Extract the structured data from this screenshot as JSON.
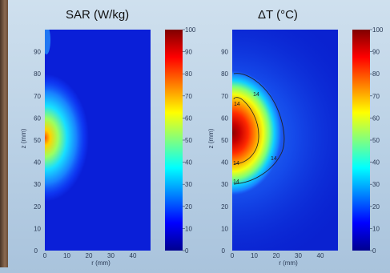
{
  "chart_data": [
    {
      "type": "heatmap",
      "title": "SAR (W/kg)",
      "xlabel": "r (mm)",
      "ylabel": "z (mm)",
      "xlim": [
        0,
        48
      ],
      "ylim": [
        0,
        100
      ],
      "x_ticks": [
        "0",
        "10",
        "20",
        "30",
        "40"
      ],
      "y_ticks": [
        "10",
        "20",
        "30",
        "40",
        "50",
        "60",
        "70",
        "80",
        "90"
      ],
      "colorbar": {
        "range": [
          0,
          100
        ],
        "ticks": [
          "0",
          "10",
          "20",
          "30",
          "40",
          "50",
          "60",
          "70",
          "80",
          "90",
          "100"
        ]
      },
      "hotspot": {
        "r": 0,
        "z": 52,
        "max": 80
      }
    },
    {
      "type": "heatmap",
      "title": "ΔT (°C)",
      "xlabel": "r (mm)",
      "ylabel": "z (mm)",
      "xlim": [
        0,
        48
      ],
      "ylim": [
        0,
        100
      ],
      "x_ticks": [
        "0",
        "10",
        "20",
        "30",
        "40"
      ],
      "y_ticks": [
        "10",
        "20",
        "30",
        "40",
        "50",
        "60",
        "70",
        "80",
        "90"
      ],
      "colorbar": {
        "range": [
          0,
          100
        ],
        "ticks": [
          "0",
          "10",
          "20",
          "30",
          "40",
          "50",
          "60",
          "70",
          "80",
          "90",
          "100"
        ]
      },
      "hotspot": {
        "r": 0,
        "z": 50,
        "max": 100
      },
      "contours": [
        {
          "level": 14,
          "label": "14",
          "shape": "outer"
        },
        {
          "level": 14,
          "label": "14",
          "shape": "inner"
        }
      ]
    }
  ]
}
